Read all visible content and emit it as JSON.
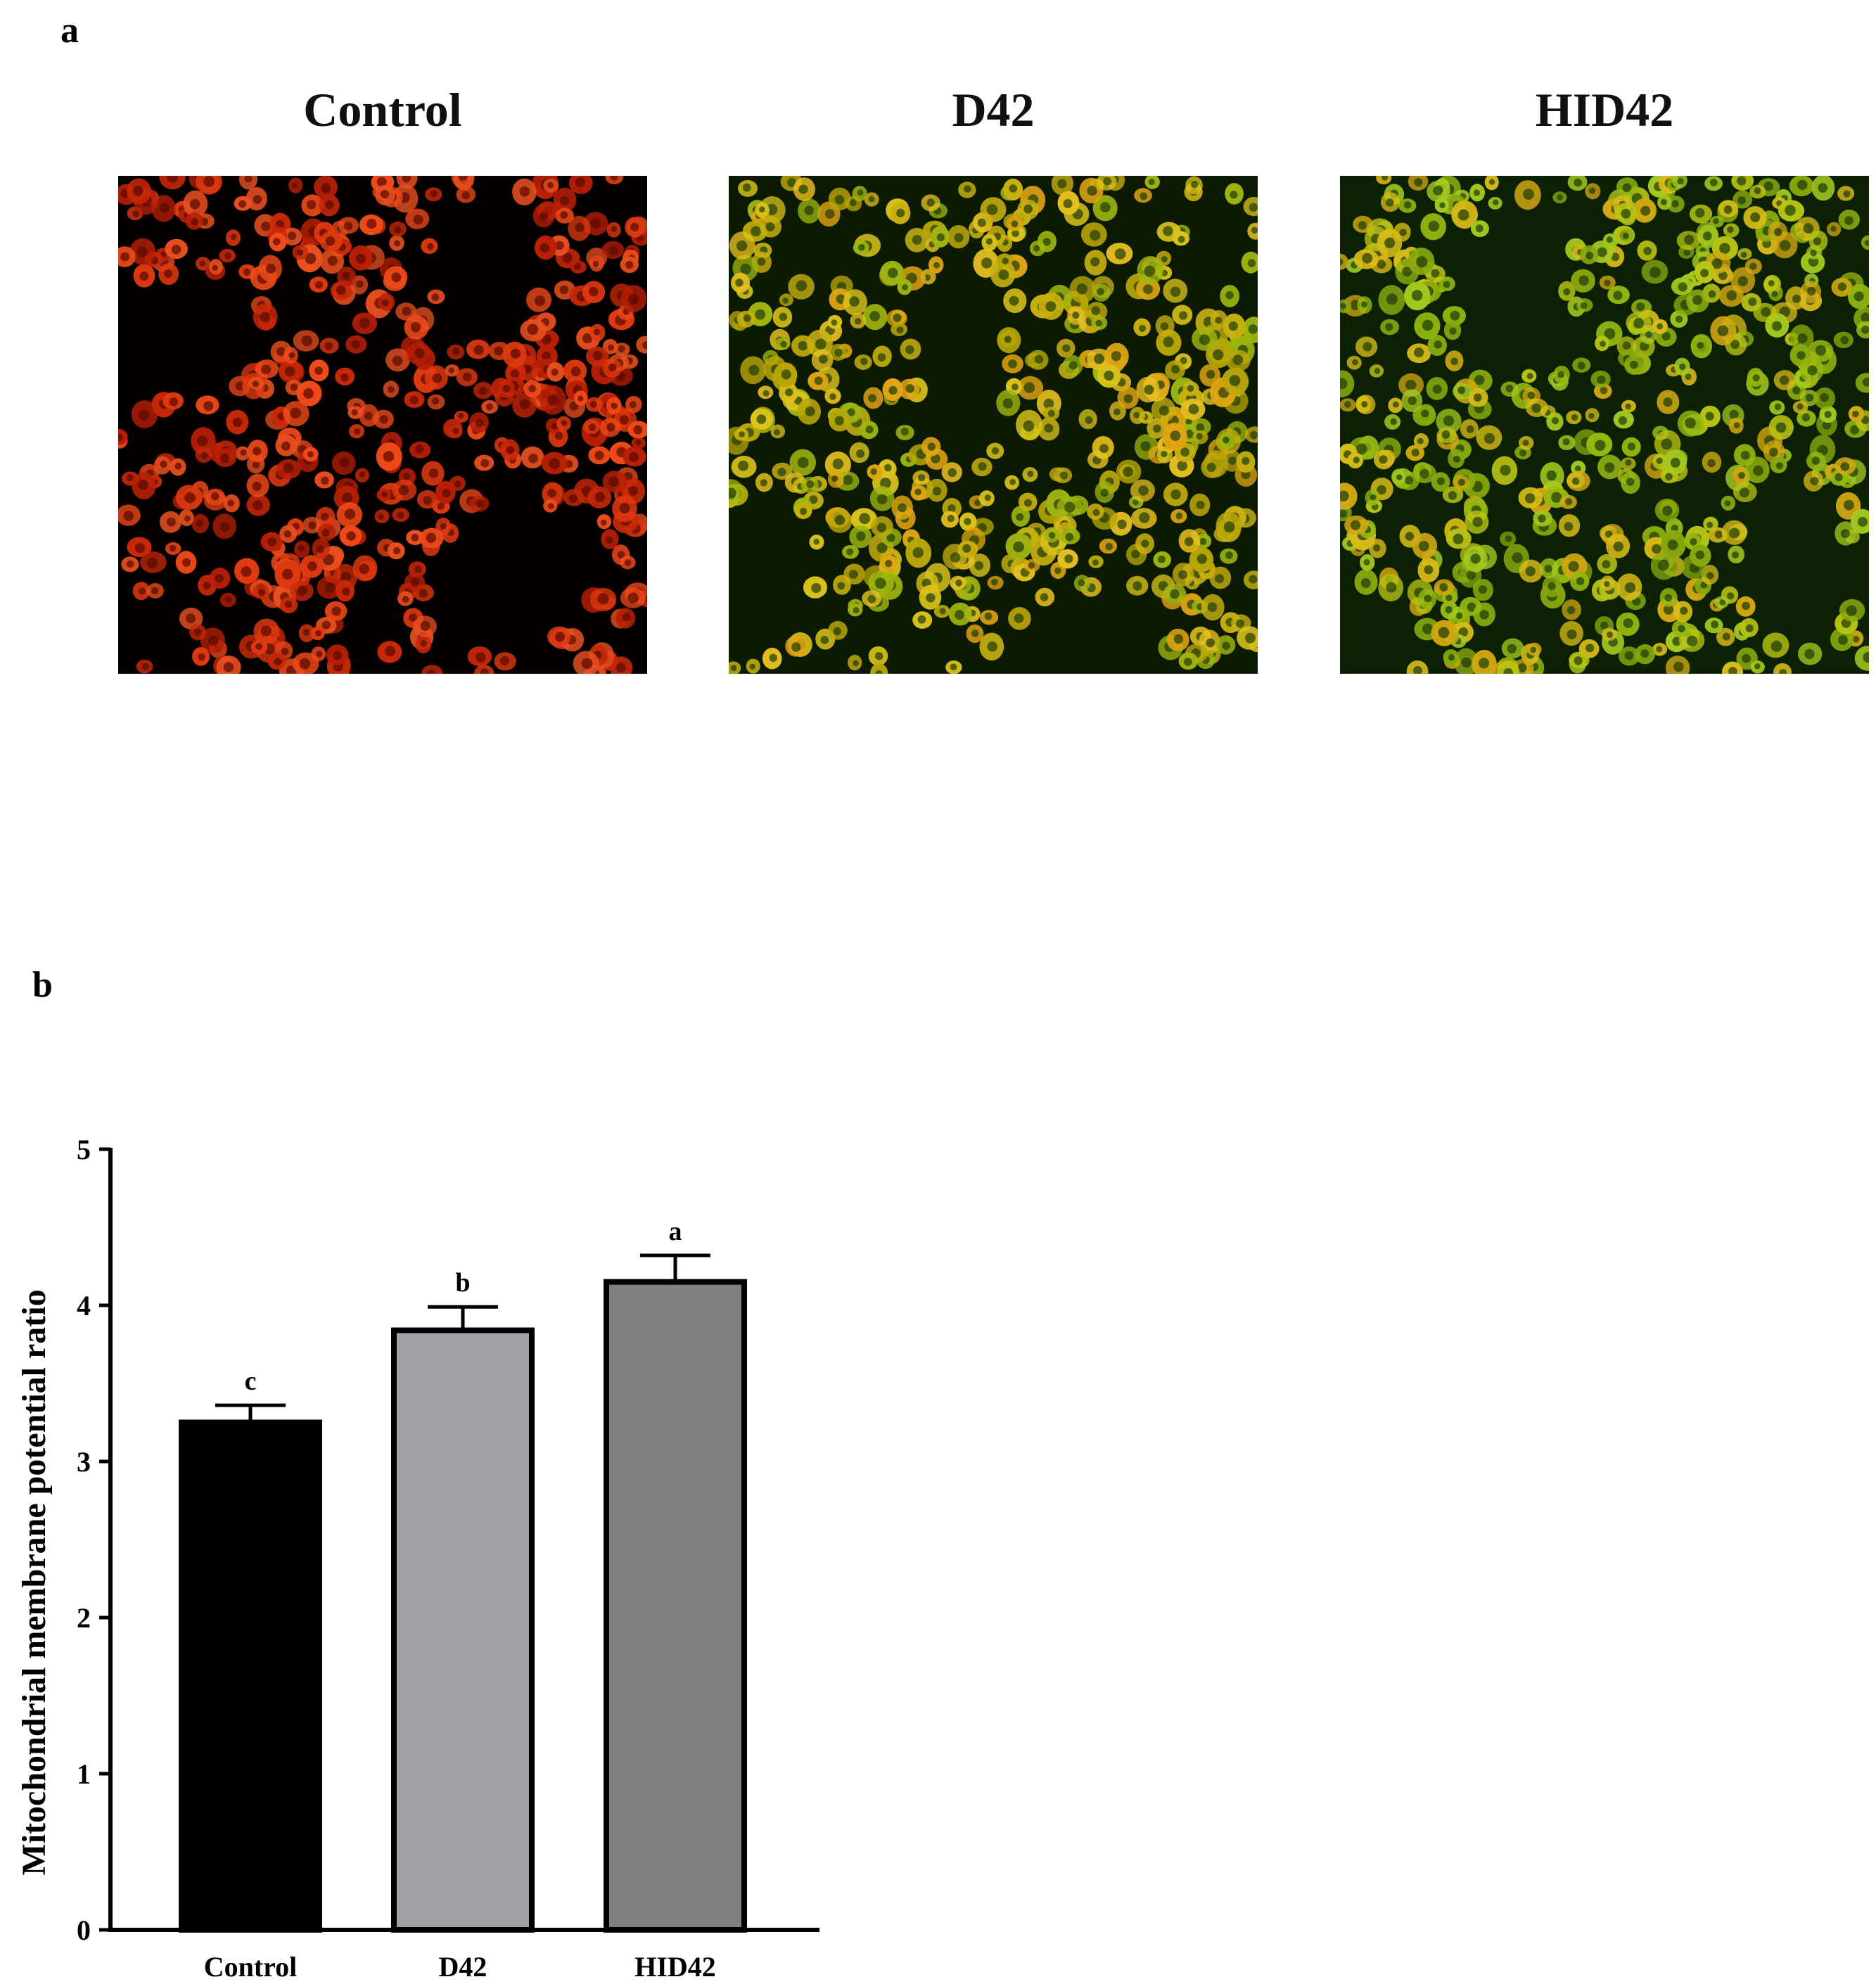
{
  "panel_a": {
    "letter": "a",
    "images": [
      {
        "title": "Control",
        "palette": "red"
      },
      {
        "title": "D42",
        "palette": "yellow-green"
      },
      {
        "title": "HID42",
        "palette": "green-yellow"
      }
    ]
  },
  "panel_b": {
    "letter": "b"
  },
  "chart_data": {
    "type": "bar",
    "title": "",
    "xlabel": "",
    "ylabel": "Mitochondrial membrane potential ratio",
    "ylim": [
      0,
      5
    ],
    "yticks": [
      "0",
      "1",
      "2",
      "3",
      "4",
      "5"
    ],
    "categories": [
      "Control",
      "D42",
      "HID42"
    ],
    "values": [
      3.25,
      3.84,
      4.15
    ],
    "errors": [
      0.11,
      0.15,
      0.17
    ],
    "significance": [
      "c",
      "b",
      "a"
    ],
    "colors": [
      "#000000",
      "#a0a0a4",
      "#808080"
    ],
    "grid": false,
    "legend": "none"
  }
}
